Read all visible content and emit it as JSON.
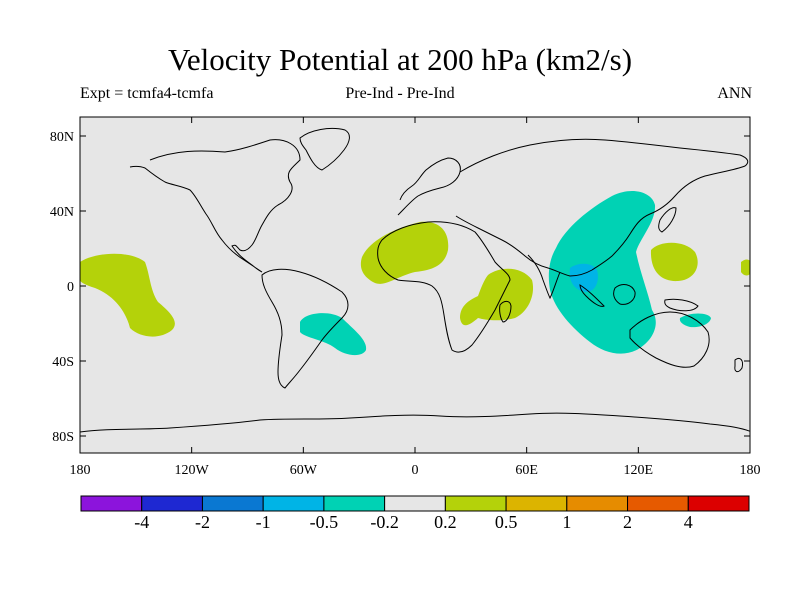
{
  "title": "Velocity Potential at 200 hPa (km2/s)",
  "subtitle": {
    "left": "Expt = tcmfa4-tcmfa",
    "center": "Pre-Ind - Pre-Ind",
    "right": "ANN"
  },
  "axes": {
    "lat_ticks": [
      "80N",
      "40N",
      "0",
      "40S",
      "80S"
    ],
    "lon_ticks": [
      "180",
      "120W",
      "60W",
      "0",
      "60E",
      "120E",
      "180"
    ]
  },
  "colors": {
    "ocean_land_neutral": "#e6e6e6",
    "coastline": "#000000",
    "positive_light": "#b4d20a",
    "negative_light": "#00d2b4",
    "negative_mid": "#00b4e6"
  },
  "colorbar": {
    "colors": [
      "#8c14dc",
      "#1e28d2",
      "#0a78d2",
      "#00b4e6",
      "#00d2b4",
      "#e6e6e6",
      "#b4d20a",
      "#dcb400",
      "#e68c00",
      "#e65a00",
      "#dc0000"
    ],
    "labels": [
      "-4",
      "-2",
      "-1",
      "-0.5",
      "-0.2",
      "0.2",
      "0.5",
      "1",
      "2",
      "4"
    ]
  }
}
